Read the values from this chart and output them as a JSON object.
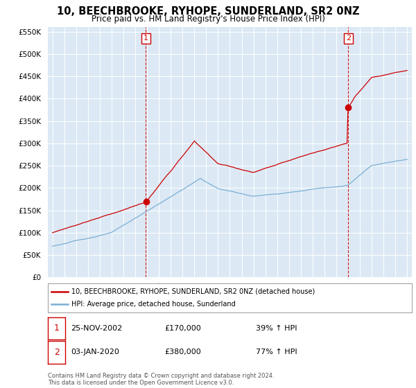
{
  "title": "10, BEECHBROOKE, RYHOPE, SUNDERLAND, SR2 0NZ",
  "subtitle": "Price paid vs. HM Land Registry's House Price Index (HPI)",
  "property_label": "10, BEECHBROOKE, RYHOPE, SUNDERLAND, SR2 0NZ (detached house)",
  "hpi_label": "HPI: Average price, detached house, Sunderland",
  "sale1_date": "25-NOV-2002",
  "sale1_price": 170000,
  "sale1_pct": "39% ↑ HPI",
  "sale2_date": "03-JAN-2020",
  "sale2_price": 380000,
  "sale2_pct": "77% ↑ HPI",
  "property_color": "#cc0000",
  "hpi_color": "#7aafd4",
  "vline_color": "#cc0000",
  "background_color": "#ffffff",
  "chart_bg_color": "#dce9f5",
  "grid_color": "#ffffff",
  "ylim": [
    0,
    560000
  ],
  "yticks": [
    0,
    50000,
    100000,
    150000,
    200000,
    250000,
    300000,
    350000,
    400000,
    450000,
    500000,
    550000
  ],
  "footer": "Contains HM Land Registry data © Crown copyright and database right 2024.\nThis data is licensed under the Open Government Licence v3.0.",
  "sale1_year_f": 2002.9,
  "sale2_year_f": 2020.03,
  "sale1_prop_val": 170000,
  "sale2_prop_val": 380000
}
